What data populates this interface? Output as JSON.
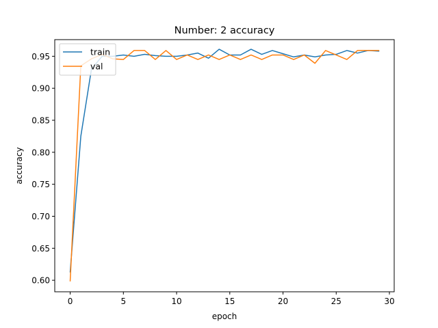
{
  "chart_data": {
    "type": "line",
    "title": "Number: 2 accuracy",
    "xlabel": "epoch",
    "ylabel": "accuracy",
    "xlim": [
      -1.45,
      30.45
    ],
    "ylim": [
      0.582,
      0.976
    ],
    "xticks": [
      0,
      5,
      10,
      15,
      20,
      25,
      30
    ],
    "yticks": [
      0.6,
      0.65,
      0.7,
      0.75,
      0.8,
      0.85,
      0.9,
      0.95
    ],
    "ytick_labels": [
      "0.60",
      "0.65",
      "0.70",
      "0.75",
      "0.80",
      "0.85",
      "0.90",
      "0.95"
    ],
    "grid": false,
    "legend_position": "top-left",
    "x": [
      0,
      1,
      2,
      3,
      4,
      5,
      6,
      7,
      8,
      9,
      10,
      11,
      12,
      13,
      14,
      15,
      16,
      17,
      18,
      19,
      20,
      21,
      22,
      23,
      24,
      25,
      26,
      27,
      28,
      29
    ],
    "series": [
      {
        "name": "train",
        "color": "#1f77b4",
        "values": [
          0.613,
          0.825,
          0.93,
          0.95,
          0.95,
          0.952,
          0.95,
          0.953,
          0.951,
          0.95,
          0.95,
          0.952,
          0.955,
          0.947,
          0.961,
          0.952,
          0.952,
          0.961,
          0.953,
          0.959,
          0.954,
          0.949,
          0.952,
          0.949,
          0.952,
          0.953,
          0.959,
          0.955,
          0.959,
          0.958
        ]
      },
      {
        "name": "val",
        "color": "#ff7f0e",
        "values": [
          0.599,
          0.935,
          0.946,
          0.953,
          0.946,
          0.945,
          0.959,
          0.959,
          0.945,
          0.959,
          0.945,
          0.952,
          0.945,
          0.952,
          0.945,
          0.952,
          0.945,
          0.952,
          0.945,
          0.952,
          0.952,
          0.945,
          0.952,
          0.939,
          0.959,
          0.952,
          0.945,
          0.959,
          0.959,
          0.959
        ]
      }
    ]
  }
}
